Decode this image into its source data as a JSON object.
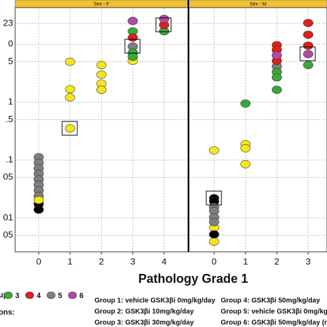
{
  "chart_data": [
    {
      "type": "scatter",
      "title": "Sex - F",
      "xlabel": "Pathology Grade 1",
      "log_y": true,
      "grid": true,
      "xlim": [
        -0.75,
        4.75
      ],
      "xticks": [
        0,
        1,
        2,
        3,
        4
      ],
      "ylim": [
        0.0026,
        42
      ],
      "yticks": [
        23,
        {
          "value": 10,
          "label": "0"
        },
        5,
        1,
        {
          "value": 0.5,
          "label": ".5"
        },
        {
          "value": 0.1,
          "label": ".1"
        },
        {
          "value": 0.05,
          "label": "05"
        },
        {
          "value": 0.01,
          "label": "01"
        },
        {
          "value": 0.005,
          "label": "05"
        }
      ],
      "series": [
        {
          "color": "#7f7f7f",
          "name": "5",
          "x": [
            0,
            0,
            0,
            0,
            0,
            0,
            0,
            0,
            3
          ],
          "values": [
            0.112,
            0.0896,
            0.072,
            0.0578,
            0.0464,
            0.0373,
            0.03,
            0.024,
            9.2
          ]
        },
        {
          "color": "#000000",
          "x": [
            0,
            0
          ],
          "values": [
            0.0173,
            0.0139
          ]
        },
        {
          "color": "#f5e61b",
          "x": [
            0,
            1,
            1,
            1,
            1,
            2,
            2,
            2,
            2,
            3
          ],
          "values": [
            0.0204,
            5,
            1.68,
            1.21,
            0.353,
            4.4,
            3.0,
            2.1,
            1.64,
            5.2
          ]
        },
        {
          "color": "#3aa83a",
          "name": "3",
          "x": [
            3,
            3,
            3,
            4
          ],
          "values": [
            16.8,
            7.2,
            6.1,
            16.8
          ]
        },
        {
          "color": "#e0201b",
          "name": "4",
          "x": [
            3,
            4
          ],
          "values": [
            13.1,
            21.6
          ]
        },
        {
          "color": "#b04aa8",
          "name": "6",
          "x": [
            3,
            4
          ],
          "values": [
            25.4,
            27.5
          ]
        }
      ]
    },
    {
      "type": "scatter",
      "title": "Sex - M",
      "log_y": true,
      "grid": true,
      "xlim": [
        -0.8,
        3.6
      ],
      "xticks": [
        0,
        1,
        2,
        3
      ],
      "ylim": [
        0.0026,
        42
      ],
      "series": [
        {
          "color": "#f5e61b",
          "x": [
            0,
            0,
            0,
            1,
            1,
            1
          ],
          "values": [
            0.147,
            0.0068,
            0.0039,
            0.188,
            0.16,
            0.085
          ]
        },
        {
          "color": "#000000",
          "x": [
            0,
            0,
            0
          ],
          "values": [
            0.022,
            0.0193,
            0.0052
          ]
        },
        {
          "color": "#7f7f7f",
          "name": "5",
          "x": [
            0,
            0,
            0,
            0,
            2
          ],
          "values": [
            0.0155,
            0.0132,
            0.0103,
            0.0085,
            4.16
          ]
        },
        {
          "color": "#3aa83a",
          "name": "3",
          "x": [
            1,
            2,
            2,
            2,
            3
          ],
          "values": [
            0.95,
            3.34,
            2.68,
            1.64,
            4.4
          ]
        },
        {
          "color": "#e0201b",
          "name": "4",
          "x": [
            2,
            2,
            2,
            3,
            3,
            3
          ],
          "values": [
            9.7,
            8.0,
            5.2,
            23.4,
            14.7,
            9.5
          ]
        },
        {
          "color": "#b04aa8",
          "name": "6",
          "x": [
            2,
            3
          ],
          "values": [
            6.45,
            6.8
          ]
        }
      ]
    }
  ],
  "legend_title": "up:",
  "notes_title": "ons:",
  "groups": [
    "Group 1: vehicle GSK3βi 0mg/kg/day",
    "Group 2: GSK3βi 10mg/kg/day",
    "Group 3: GSK3βi 30mg/kg/day",
    "Group 4: GSK3βi 50mg/kg/day",
    "Group 5: vehicle GSK3βi 0mg/kg/day",
    "Group 6: GSK3βi 50mg/kg/day (re"
  ]
}
